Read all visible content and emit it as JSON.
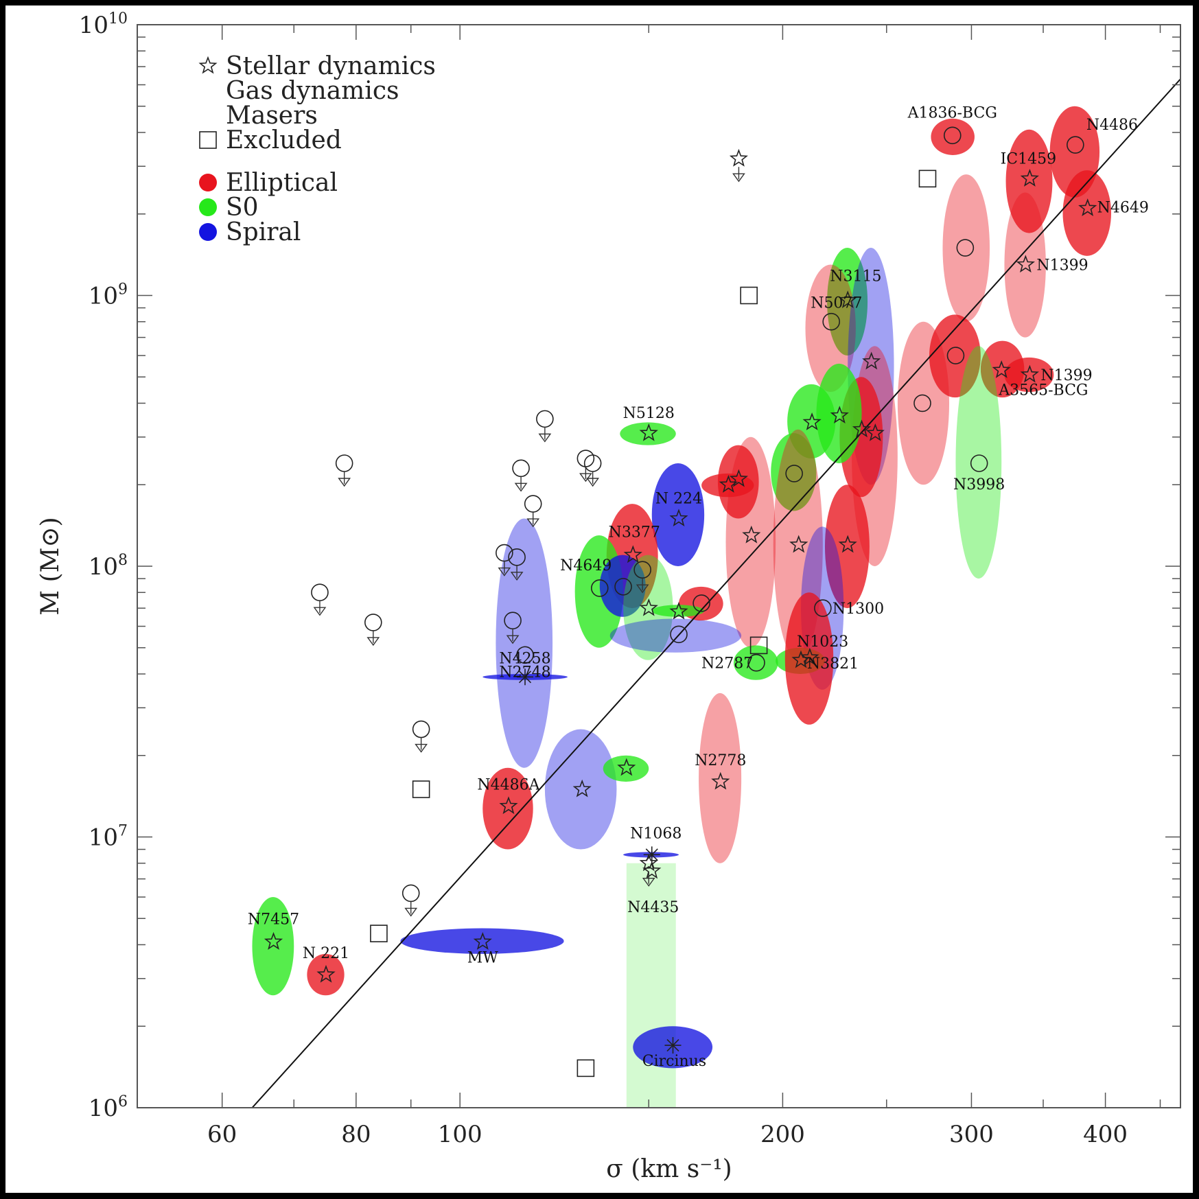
{
  "chart_data": {
    "type": "scatter",
    "xlabel": "σ (km s⁻¹)",
    "ylabel": "M (M⊙)",
    "xscale": "log",
    "yscale": "log",
    "xlim": [
      50,
      470
    ],
    "ylim": [
      1000000,
      10000000000
    ],
    "x_ticks": [
      60,
      80,
      100,
      200,
      300,
      400
    ],
    "y_ticks": [
      {
        "value": 1000000,
        "base": "10",
        "exp": "6"
      },
      {
        "value": 10000000,
        "base": "10",
        "exp": "7"
      },
      {
        "value": 100000000,
        "base": "10",
        "exp": "8"
      },
      {
        "value": 1000000000,
        "base": "10",
        "exp": "9"
      },
      {
        "value": 10000000000,
        "base": "10",
        "exp": "10"
      }
    ],
    "fit_line": {
      "x": [
        64,
        470
      ],
      "y": [
        1000000,
        6300000000
      ]
    },
    "legend": {
      "placement": "top-left",
      "methods": [
        {
          "marker": "star",
          "label": "Stellar dynamics"
        },
        {
          "marker": "circle",
          "label": "Gas dynamics"
        },
        {
          "marker": "asterisk",
          "label": "Masers"
        },
        {
          "marker": "square",
          "label": "Excluded"
        }
      ],
      "types": [
        {
          "label": "Elliptical",
          "color": "#e8141e"
        },
        {
          "label": "S0",
          "color": "#26e81a"
        },
        {
          "label": "Spiral",
          "color": "#1414e0"
        }
      ]
    },
    "galaxies": [
      {
        "label": "A1836-BCG",
        "sigma": 288,
        "mass": 3900000000,
        "sig_lo": 275,
        "sig_hi": 302,
        "m_lo": 3300000000,
        "m_hi": 4500000000,
        "type": "E",
        "method": "gas",
        "fade": false
      },
      {
        "label": "N4486",
        "sigma": 375,
        "mass": 3600000000,
        "sig_lo": 355,
        "sig_hi": 395,
        "m_lo": 2300000000,
        "m_hi": 5000000000,
        "type": "E",
        "method": "gas",
        "fade": false
      },
      {
        "label": "IC1459",
        "sigma": 340,
        "mass": 2700000000,
        "sig_lo": 323,
        "sig_hi": 357,
        "m_lo": 1700000000,
        "m_hi": 4100000000,
        "type": "E",
        "method": "star",
        "fade": false
      },
      {
        "label": "N4649",
        "sigma": 385,
        "mass": 2100000000,
        "sig_lo": 365,
        "sig_hi": 405,
        "m_lo": 1400000000,
        "m_hi": 2900000000,
        "type": "E",
        "method": "star",
        "fade": false
      },
      {
        "label": "",
        "sigma": 296,
        "mass": 1500000000,
        "sig_lo": 282,
        "sig_hi": 312,
        "m_lo": 800000000,
        "m_hi": 2800000000,
        "type": "E",
        "method": "gas",
        "fade": true
      },
      {
        "label": "N1399",
        "sigma": 337,
        "mass": 1300000000,
        "sig_lo": 322,
        "sig_hi": 352,
        "m_lo": 700000000,
        "m_hi": 2400000000,
        "type": "E",
        "method": "star",
        "fade": true
      },
      {
        "label": "N1399",
        "sigma": 340,
        "mass": 510000000,
        "sig_lo": 322,
        "sig_hi": 358,
        "m_lo": 440000000,
        "m_hi": 590000000,
        "type": "E",
        "method": "star",
        "fade": false
      },
      {
        "label": "",
        "sigma": 290,
        "mass": 600000000,
        "sig_lo": 274,
        "sig_hi": 306,
        "m_lo": 420000000,
        "m_hi": 850000000,
        "type": "E",
        "method": "gas",
        "fade": false
      },
      {
        "label": "A3565-BCG",
        "sigma": 320,
        "mass": 530000000,
        "sig_lo": 306,
        "sig_hi": 336,
        "m_lo": 420000000,
        "m_hi": 680000000,
        "type": "E",
        "method": "star",
        "fade": false
      },
      {
        "label": "N3998",
        "sigma": 305,
        "mass": 240000000,
        "sig_lo": 290,
        "sig_hi": 320,
        "m_lo": 90000000,
        "m_hi": 650000000,
        "type": "S0",
        "method": "gas",
        "fade": true
      },
      {
        "label": "",
        "sigma": 270,
        "mass": 400000000,
        "sig_lo": 256,
        "sig_hi": 286,
        "m_lo": 200000000,
        "m_hi": 800000000,
        "type": "E",
        "method": "gas",
        "fade": true
      },
      {
        "label": "N3115",
        "sigma": 230,
        "mass": 960000000,
        "sig_lo": 220,
        "sig_hi": 240,
        "m_lo": 600000000,
        "m_hi": 1500000000,
        "type": "S0",
        "method": "star",
        "fade": false
      },
      {
        "label": "N5077",
        "sigma": 222,
        "mass": 800000000,
        "sig_lo": 210,
        "sig_hi": 234,
        "m_lo": 440000000,
        "m_hi": 1300000000,
        "type": "E",
        "method": "gas",
        "fade": true
      },
      {
        "label": "",
        "sigma": 242,
        "mass": 570000000,
        "sig_lo": 230,
        "sig_hi": 254,
        "m_lo": 200000000,
        "m_hi": 1500000000,
        "type": "Spiral",
        "method": "star",
        "fade": true
      },
      {
        "label": "",
        "sigma": 244,
        "mass": 310000000,
        "sig_lo": 232,
        "sig_hi": 256,
        "m_lo": 100000000,
        "m_hi": 650000000,
        "type": "E",
        "method": "star",
        "fade": true
      },
      {
        "label": "",
        "sigma": 237,
        "mass": 320000000,
        "sig_lo": 226,
        "sig_hi": 248,
        "m_lo": 180000000,
        "m_hi": 500000000,
        "type": "E",
        "method": "star",
        "fade": false
      },
      {
        "label": "",
        "sigma": 226,
        "mass": 360000000,
        "sig_lo": 215,
        "sig_hi": 237,
        "m_lo": 240000000,
        "m_hi": 560000000,
        "type": "S0",
        "method": "star",
        "fade": false
      },
      {
        "label": "",
        "sigma": 213,
        "mass": 340000000,
        "sig_lo": 202,
        "sig_hi": 224,
        "m_lo": 250000000,
        "m_hi": 470000000,
        "type": "S0",
        "method": "star",
        "fade": false
      },
      {
        "label": "",
        "sigma": 205,
        "mass": 220000000,
        "sig_lo": 195,
        "sig_hi": 215,
        "m_lo": 160000000,
        "m_hi": 310000000,
        "type": "S0",
        "method": "gas",
        "fade": false
      },
      {
        "label": "N5128",
        "sigma": 150,
        "mass": 310000000,
        "sig_lo": 141,
        "sig_hi": 159,
        "m_lo": 280000000,
        "m_hi": 340000000,
        "type": "S0",
        "method": "star",
        "fade": false
      },
      {
        "label": "N 224",
        "sigma": 160,
        "mass": 150000000,
        "sig_lo": 151,
        "sig_hi": 169,
        "m_lo": 100000000,
        "m_hi": 240000000,
        "type": "Spiral",
        "method": "star",
        "fade": false
      },
      {
        "label": "",
        "sigma": 182,
        "mass": 210000000,
        "sig_lo": 174,
        "sig_hi": 190,
        "m_lo": 150000000,
        "m_hi": 280000000,
        "type": "E",
        "method": "star",
        "fade": false
      },
      {
        "label": "",
        "sigma": 178,
        "mass": 200000000,
        "sig_lo": 168,
        "sig_hi": 188,
        "m_lo": 180000000,
        "m_hi": 220000000,
        "type": "E",
        "method": "star",
        "fade": false
      },
      {
        "label": "",
        "sigma": 187,
        "mass": 130000000,
        "sig_lo": 177,
        "sig_hi": 197,
        "m_lo": 50000000,
        "m_hi": 300000000,
        "type": "E",
        "method": "star",
        "fade": true
      },
      {
        "label": "",
        "sigma": 207,
        "mass": 120000000,
        "sig_lo": 196,
        "sig_hi": 218,
        "m_lo": 45000000,
        "m_hi": 320000000,
        "type": "E",
        "method": "star",
        "fade": true
      },
      {
        "label": "",
        "sigma": 230,
        "mass": 120000000,
        "sig_lo": 219,
        "sig_hi": 241,
        "m_lo": 70000000,
        "m_hi": 200000000,
        "type": "E",
        "method": "star",
        "fade": false
      },
      {
        "label": "N1300",
        "sigma": 218,
        "mass": 70000000,
        "sig_lo": 208,
        "sig_hi": 228,
        "m_lo": 35000000,
        "m_hi": 140000000,
        "type": "Spiral",
        "method": "gas",
        "fade": true
      },
      {
        "label": "N1023",
        "sigma": 208,
        "mass": 45000000,
        "sig_lo": 197,
        "sig_hi": 219,
        "m_lo": 40000000,
        "m_hi": 50000000,
        "type": "S0",
        "method": "star",
        "fade": false
      },
      {
        "label": "N3821",
        "sigma": 212,
        "mass": 46000000,
        "sig_lo": 201,
        "sig_hi": 223,
        "m_lo": 26000000,
        "m_hi": 80000000,
        "type": "E",
        "method": "star",
        "fade": false
      },
      {
        "label": "N2787",
        "sigma": 189,
        "mass": 44000000,
        "sig_lo": 180,
        "sig_hi": 198,
        "m_lo": 38000000,
        "m_hi": 51000000,
        "type": "S0",
        "method": "gas",
        "fade": false
      },
      {
        "label": "N3377",
        "sigma": 145,
        "mass": 110000000,
        "sig_lo": 137,
        "sig_hi": 153,
        "m_lo": 70000000,
        "m_hi": 170000000,
        "type": "E",
        "method": "star",
        "fade": false
      },
      {
        "label": "N4649",
        "sigma": 135,
        "mass": 83000000,
        "sig_lo": 128,
        "sig_hi": 142,
        "m_lo": 50000000,
        "m_hi": 130000000,
        "type": "S0",
        "method": "gas",
        "fade": false
      },
      {
        "label": "",
        "sigma": 142,
        "mass": 84000000,
        "sig_lo": 135,
        "sig_hi": 149,
        "m_lo": 65000000,
        "m_hi": 110000000,
        "type": "Spiral",
        "method": "gas",
        "fade": false
      },
      {
        "label": "",
        "sigma": 150,
        "mass": 70000000,
        "sig_lo": 142,
        "sig_hi": 158,
        "m_lo": 45000000,
        "m_hi": 110000000,
        "type": "S0",
        "method": "star",
        "fade": true
      },
      {
        "label": "",
        "sigma": 160,
        "mass": 56000000,
        "sig_lo": 138,
        "sig_hi": 183,
        "m_lo": 48000000,
        "m_hi": 64000000,
        "type": "Spiral",
        "method": "gas",
        "fade": true
      },
      {
        "label": "",
        "sigma": 168,
        "mass": 73000000,
        "sig_lo": 160,
        "sig_hi": 176,
        "m_lo": 63000000,
        "m_hi": 84000000,
        "type": "E",
        "method": "gas",
        "fade": false
      },
      {
        "label": "",
        "sigma": 160,
        "mass": 68000000,
        "sig_lo": 151,
        "sig_hi": 169,
        "m_lo": 65000000,
        "m_hi": 72000000,
        "type": "S0",
        "method": "star",
        "fade": false
      },
      {
        "label": "N2748",
        "sigma": 115,
        "mass": 47000000,
        "sig_lo": 108,
        "sig_hi": 122,
        "m_lo": 18000000,
        "m_hi": 150000000,
        "type": "Spiral",
        "method": "gas",
        "fade": true
      },
      {
        "label": "N4258",
        "sigma": 115,
        "mass": 39000000,
        "sig_lo": 105,
        "sig_hi": 126,
        "m_lo": 38000000,
        "m_hi": 40000000,
        "type": "Spiral",
        "method": "maser",
        "fade": false
      },
      {
        "label": "N4486A",
        "sigma": 111,
        "mass": 13000000,
        "sig_lo": 105,
        "sig_hi": 117,
        "m_lo": 9000000,
        "m_hi": 18000000,
        "type": "E",
        "method": "star",
        "fade": false
      },
      {
        "label": "",
        "sigma": 130,
        "mass": 15000000,
        "sig_lo": 120,
        "sig_hi": 140,
        "m_lo": 9000000,
        "m_hi": 25000000,
        "type": "Spiral",
        "method": "star",
        "fade": true
      },
      {
        "label": "",
        "sigma": 143,
        "mass": 18000000,
        "sig_lo": 136,
        "sig_hi": 150,
        "m_lo": 16000000,
        "m_hi": 20000000,
        "type": "S0",
        "method": "star",
        "fade": false
      },
      {
        "label": "N2778",
        "sigma": 175,
        "mass": 16000000,
        "sig_lo": 167,
        "sig_hi": 183,
        "m_lo": 8000000,
        "m_hi": 34000000,
        "type": "E",
        "method": "star",
        "fade": true
      },
      {
        "label": "N1068",
        "sigma": 151,
        "mass": 8600000,
        "sig_lo": 142,
        "sig_hi": 160,
        "m_lo": 8400000,
        "m_hi": 8800000,
        "type": "Spiral",
        "method": "maser",
        "fade": false
      },
      {
        "label": "N4435",
        "sigma": 151,
        "mass": 7500000,
        "sig_lo": 143,
        "sig_hi": 159,
        "m_lo": 1000000,
        "m_hi": 8000000,
        "type": "S0",
        "method": "star",
        "fade": true
      },
      {
        "label": "Circinus",
        "sigma": 158,
        "mass": 1700000,
        "sig_lo": 145,
        "sig_hi": 172,
        "m_lo": 1400000,
        "m_hi": 2000000,
        "type": "Spiral",
        "method": "maser",
        "fade": false
      },
      {
        "label": "N7457",
        "sigma": 67,
        "mass": 4100000,
        "sig_lo": 64,
        "sig_hi": 70,
        "m_lo": 2600000,
        "m_hi": 6000000,
        "type": "S0",
        "method": "star",
        "fade": false
      },
      {
        "label": "N 221",
        "sigma": 75,
        "mass": 3100000,
        "sig_lo": 72,
        "sig_hi": 78,
        "m_lo": 2600000,
        "m_hi": 3700000,
        "type": "E",
        "method": "star",
        "fade": false
      },
      {
        "label": "MW",
        "sigma": 105,
        "mass": 4100000,
        "sig_lo": 88,
        "sig_hi": 125,
        "m_lo": 3700000,
        "m_hi": 4600000,
        "type": "Spiral",
        "method": "star",
        "fade": false
      }
    ],
    "upper_limits": [
      {
        "sigma": 78,
        "mass": 240000000,
        "method": "gas"
      },
      {
        "sigma": 74,
        "mass": 80000000,
        "method": "gas"
      },
      {
        "sigma": 83,
        "mass": 62000000,
        "method": "gas"
      },
      {
        "sigma": 92,
        "mass": 25000000,
        "method": "gas"
      },
      {
        "sigma": 90,
        "mass": 6200000,
        "method": "gas"
      },
      {
        "sigma": 110,
        "mass": 112000000,
        "method": "gas"
      },
      {
        "sigma": 113,
        "mass": 108000000,
        "method": "gas"
      },
      {
        "sigma": 112,
        "mass": 63000000,
        "method": "gas"
      },
      {
        "sigma": 114,
        "mass": 230000000,
        "method": "gas"
      },
      {
        "sigma": 117,
        "mass": 170000000,
        "method": "gas"
      },
      {
        "sigma": 120,
        "mass": 350000000,
        "method": "gas"
      },
      {
        "sigma": 131,
        "mass": 250000000,
        "method": "gas"
      },
      {
        "sigma": 133,
        "mass": 240000000,
        "method": "gas"
      },
      {
        "sigma": 148,
        "mass": 97000000,
        "method": "gas"
      },
      {
        "sigma": 150,
        "mass": 8000000,
        "method": "maser"
      },
      {
        "sigma": 182,
        "mass": 3200000000,
        "method": "maser"
      }
    ],
    "excluded": [
      {
        "sigma": 84,
        "mass": 4400000
      },
      {
        "sigma": 92,
        "mass": 15000000
      },
      {
        "sigma": 131,
        "mass": 1400000
      },
      {
        "sigma": 186,
        "mass": 1000000000
      },
      {
        "sigma": 190,
        "mass": 51000000
      },
      {
        "sigma": 273,
        "mass": 2700000000
      }
    ]
  }
}
